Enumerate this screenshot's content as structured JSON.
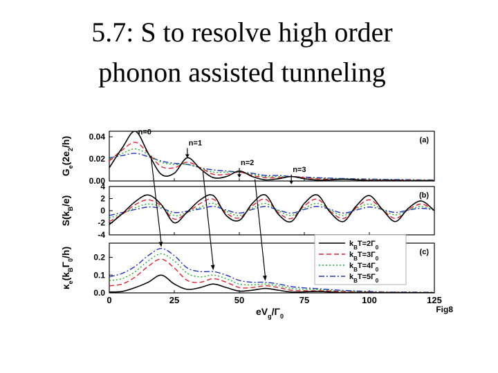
{
  "slide": {
    "title_line1": "5.7: S to resolve high order",
    "title_line2": "phonon assisted tunneling"
  },
  "figure": {
    "caption": "Fig8"
  },
  "chart_data": [
    {
      "type": "line",
      "panel_label": "(a)",
      "ylabel": [
        "G",
        "e",
        "(2e",
        "2",
        "/h)"
      ],
      "ylim": [
        0.0,
        0.045
      ],
      "yticks": [
        "0.04",
        "0.02",
        "0.00"
      ],
      "ytick_values": [
        0.04,
        0.02,
        0.0
      ],
      "xlim": [
        0,
        125
      ],
      "annotations": [
        {
          "text": "n=0",
          "x": 10,
          "y": 0.041
        },
        {
          "text": "n=1",
          "x": 30,
          "y": 0.031
        },
        {
          "text": "n=2",
          "x": 50,
          "y": 0.013
        },
        {
          "text": "n=3",
          "x": 70,
          "y": 0.007
        }
      ],
      "x": [
        0,
        5,
        10,
        15,
        20,
        25,
        30,
        35,
        40,
        45,
        50,
        55,
        60,
        65,
        70,
        75,
        80,
        85,
        90,
        95,
        100,
        105,
        110,
        115,
        120,
        125
      ],
      "series": [
        {
          "style": "solid",
          "color": "#000000",
          "values": [
            0.012,
            0.03,
            0.045,
            0.025,
            0.006,
            0.007,
            0.021,
            0.011,
            0.003,
            0.004,
            0.009,
            0.004,
            0.001,
            0.002,
            0.004,
            0.002,
            0.0008,
            0.001,
            0.0015,
            0.001,
            0.0005,
            0.0004,
            0.0004,
            0.0003,
            0.0003,
            0.0003
          ]
        },
        {
          "style": "dashed",
          "color": "#e0202a",
          "values": [
            0.018,
            0.028,
            0.035,
            0.025,
            0.013,
            0.012,
            0.017,
            0.012,
            0.006,
            0.006,
            0.008,
            0.005,
            0.003,
            0.003,
            0.004,
            0.003,
            0.002,
            0.0015,
            0.0015,
            0.0013,
            0.001,
            0.0008,
            0.0008,
            0.0007,
            0.0006,
            0.0006
          ]
        },
        {
          "style": "dotted",
          "color": "#17b020",
          "values": [
            0.02,
            0.025,
            0.029,
            0.024,
            0.017,
            0.015,
            0.015,
            0.012,
            0.008,
            0.008,
            0.008,
            0.006,
            0.004,
            0.004,
            0.004,
            0.003,
            0.0025,
            0.002,
            0.002,
            0.0017,
            0.0014,
            0.0012,
            0.001,
            0.0009,
            0.0008,
            0.0008
          ]
        },
        {
          "style": "dashdot",
          "color": "#2030c8",
          "values": [
            0.021,
            0.023,
            0.025,
            0.022,
            0.018,
            0.016,
            0.015,
            0.012,
            0.01,
            0.009,
            0.008,
            0.007,
            0.005,
            0.005,
            0.004,
            0.0035,
            0.003,
            0.0025,
            0.0022,
            0.002,
            0.0017,
            0.0015,
            0.0013,
            0.0012,
            0.001,
            0.001
          ]
        }
      ]
    },
    {
      "type": "line",
      "panel_label": "(b)",
      "ylabel": [
        "S(k",
        "B",
        "/e)"
      ],
      "ylim": [
        -4,
        4
      ],
      "yticks": [
        "4",
        "2",
        "0",
        "-2",
        "-4"
      ],
      "ytick_values": [
        4,
        2,
        0,
        -2,
        -4
      ],
      "xlim": [
        0,
        125
      ],
      "x": [
        0,
        5,
        10,
        15,
        20,
        25,
        30,
        35,
        40,
        45,
        50,
        55,
        60,
        65,
        70,
        75,
        80,
        85,
        90,
        95,
        100,
        105,
        110,
        115,
        120,
        125
      ],
      "series": [
        {
          "style": "solid",
          "color": "#000000",
          "values": [
            -2.3,
            -0.5,
            1.5,
            2.6,
            1.0,
            -2.0,
            -0.2,
            1.8,
            2.5,
            -0.8,
            -1.6,
            1.2,
            2.6,
            -0.6,
            -1.8,
            1.2,
            2.6,
            -0.3,
            -1.8,
            0.8,
            2.5,
            0.2,
            -1.8,
            0.4,
            1.6,
            0.0
          ]
        },
        {
          "style": "dashed",
          "color": "#e0202a",
          "values": [
            -1.8,
            -0.6,
            1.0,
            1.8,
            0.8,
            -1.4,
            -0.3,
            1.2,
            1.9,
            -0.4,
            -1.2,
            0.8,
            1.9,
            -0.3,
            -1.3,
            0.8,
            1.9,
            -0.1,
            -1.3,
            0.5,
            1.8,
            0.2,
            -1.3,
            0.2,
            1.1,
            0.1
          ]
        },
        {
          "style": "dotted",
          "color": "#17b020",
          "values": [
            -1.2,
            -0.5,
            0.5,
            1.1,
            0.6,
            -0.8,
            -0.3,
            0.6,
            1.2,
            -0.1,
            -0.8,
            0.4,
            1.2,
            0.0,
            -0.8,
            0.4,
            1.2,
            0.1,
            -0.8,
            0.3,
            1.1,
            0.2,
            -0.7,
            0.1,
            0.7,
            0.1
          ]
        },
        {
          "style": "dashdot",
          "color": "#2030c8",
          "values": [
            -0.8,
            -0.3,
            0.2,
            0.6,
            0.4,
            -0.3,
            -0.1,
            0.3,
            0.7,
            0.1,
            -0.4,
            0.2,
            0.7,
            0.1,
            -0.4,
            0.2,
            0.7,
            0.2,
            -0.4,
            0.1,
            0.6,
            0.2,
            -0.3,
            0.1,
            0.4,
            0.1
          ]
        }
      ]
    },
    {
      "type": "line",
      "panel_label": "(c)",
      "ylabel": [
        "κ",
        "e",
        "(k",
        "B",
        "Γ",
        "0",
        "/h)"
      ],
      "ylim": [
        0.0,
        0.28
      ],
      "yticks": [
        "0.2",
        "0.1",
        "0.0"
      ],
      "ytick_values": [
        0.2,
        0.1,
        0.0
      ],
      "xlim": [
        0,
        125
      ],
      "xticks": [
        "0",
        "25",
        "50",
        "75",
        "100",
        "125"
      ],
      "xtick_values": [
        0,
        25,
        50,
        75,
        100,
        125
      ],
      "xlabel": [
        "eV",
        "g",
        "/Γ",
        "0"
      ],
      "legend": {
        "placement": "top-right",
        "entries": [
          [
            "k",
            "B",
            "T=2Γ",
            "0"
          ],
          [
            "k",
            "B",
            "T=3Γ",
            "0"
          ],
          [
            "k",
            "B",
            "T=4Γ",
            "0"
          ],
          [
            "k",
            "B",
            "T=5Γ",
            "0"
          ]
        ]
      },
      "x": [
        0,
        5,
        10,
        15,
        20,
        25,
        30,
        35,
        40,
        45,
        50,
        55,
        60,
        65,
        70,
        75,
        80,
        85,
        90,
        95,
        100,
        105,
        110,
        115,
        120,
        125
      ],
      "series": [
        {
          "style": "solid",
          "color": "#000000",
          "values": [
            0.005,
            0.008,
            0.03,
            0.06,
            0.1,
            0.05,
            0.02,
            0.03,
            0.05,
            0.03,
            0.01,
            0.015,
            0.025,
            0.015,
            0.005,
            0.006,
            0.008,
            0.005,
            0.002,
            0.002,
            0.002,
            0.001,
            0.001,
            0.001,
            0.001,
            0.001
          ]
        },
        {
          "style": "dashed",
          "color": "#e0202a",
          "values": [
            0.04,
            0.05,
            0.09,
            0.15,
            0.19,
            0.14,
            0.07,
            0.06,
            0.08,
            0.06,
            0.03,
            0.03,
            0.04,
            0.03,
            0.015,
            0.012,
            0.012,
            0.01,
            0.007,
            0.005,
            0.004,
            0.003,
            0.003,
            0.002,
            0.002,
            0.002
          ]
        },
        {
          "style": "dotted",
          "color": "#17b020",
          "values": [
            0.07,
            0.08,
            0.12,
            0.18,
            0.22,
            0.18,
            0.11,
            0.09,
            0.1,
            0.08,
            0.05,
            0.045,
            0.05,
            0.04,
            0.025,
            0.02,
            0.018,
            0.014,
            0.01,
            0.008,
            0.006,
            0.005,
            0.004,
            0.004,
            0.003,
            0.003
          ]
        },
        {
          "style": "dashdot",
          "color": "#2030c8",
          "values": [
            0.09,
            0.11,
            0.15,
            0.21,
            0.25,
            0.21,
            0.14,
            0.12,
            0.12,
            0.1,
            0.07,
            0.06,
            0.06,
            0.05,
            0.035,
            0.028,
            0.024,
            0.018,
            0.014,
            0.011,
            0.008,
            0.006,
            0.005,
            0.005,
            0.004,
            0.004
          ]
        }
      ]
    }
  ]
}
